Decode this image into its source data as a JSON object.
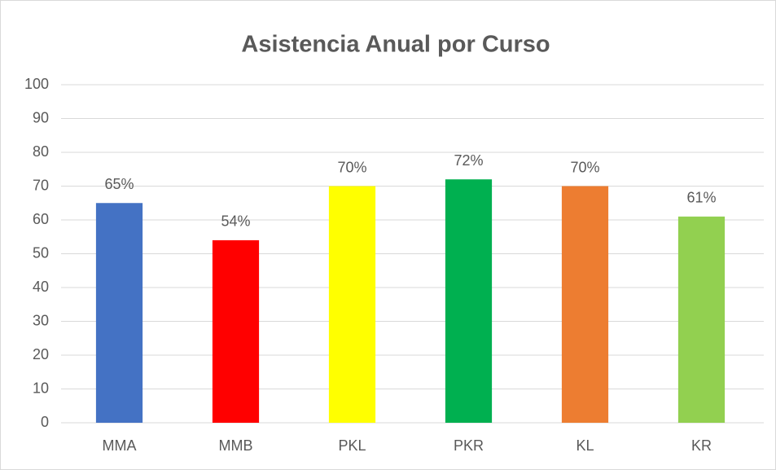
{
  "chart_data": {
    "type": "bar",
    "title": "Asistencia Anual por Curso",
    "categories": [
      "MMA",
      "MMB",
      "PKL",
      "PKR",
      "KL",
      "KR"
    ],
    "values": [
      65,
      54,
      70,
      72,
      70,
      61
    ],
    "value_labels": [
      "65%",
      "54%",
      "70%",
      "72%",
      "70%",
      "61%"
    ],
    "colors": [
      "#4472c4",
      "#ff0000",
      "#ffff00",
      "#00b050",
      "#ed7d31",
      "#92d050"
    ],
    "ylim": [
      0,
      100
    ],
    "yticks": [
      0,
      10,
      20,
      30,
      40,
      50,
      60,
      70,
      80,
      90,
      100
    ],
    "grid": true
  }
}
